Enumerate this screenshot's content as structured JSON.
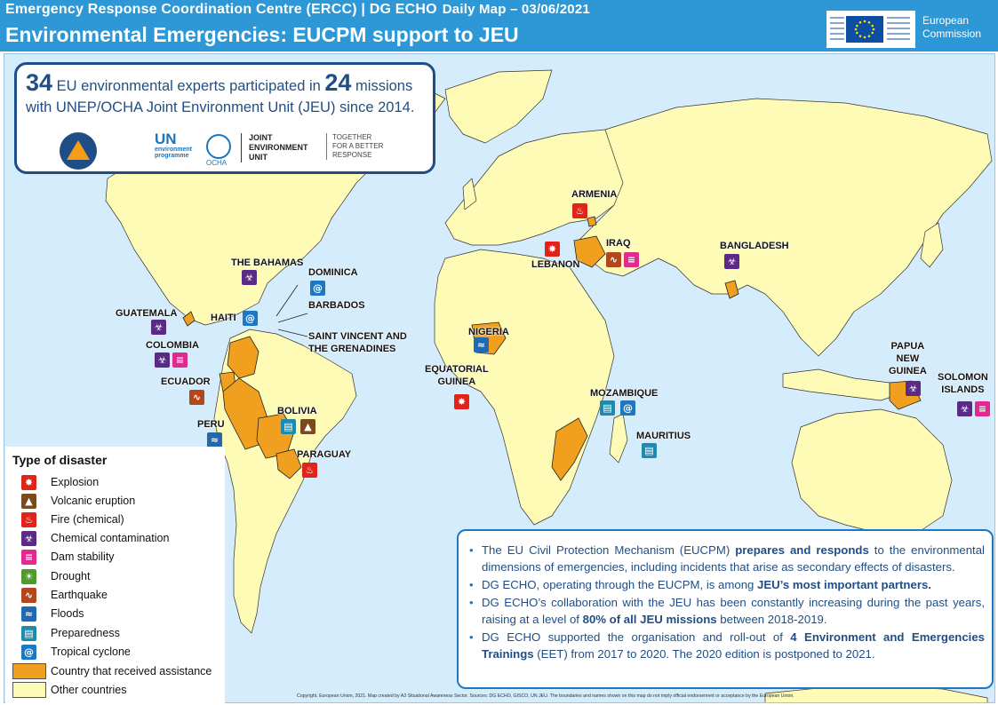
{
  "header": {
    "line1": "Emergency Response Coordination Centre (ERCC) | DG ECHO",
    "line1_sub": "Daily Map – 03/06/2021",
    "title": "Environmental Emergencies: EUCPM support to JEU",
    "ec_logo_text": [
      "European",
      "Commission"
    ]
  },
  "info": {
    "experts_count": "34",
    "text1": "EU environmental experts participated in",
    "missions_count": "24",
    "text2": "missions",
    "text3": "with UNEP/OCHA Joint Environment Unit (JEU) since 2014.",
    "logos": {
      "un_env": "UN",
      "un_env_sub": [
        "environment",
        "programme"
      ],
      "ocha": "OCHA",
      "jeu": [
        "JOINT",
        "ENVIRONMENT",
        "UNIT"
      ],
      "together": [
        "TOGETHER",
        "FOR A BETTER",
        "RESPONSE"
      ]
    }
  },
  "countries": [
    {
      "name": "ARMENIA",
      "icons": [
        "fire"
      ]
    },
    {
      "name": "LEBANON",
      "icons": [
        "explosion"
      ]
    },
    {
      "name": "IRAQ",
      "icons": [
        "earthquake",
        "dam"
      ]
    },
    {
      "name": "BANGLADESH",
      "icons": [
        "chemical"
      ]
    },
    {
      "name": "THE BAHAMAS",
      "icons": [
        "chemical"
      ]
    },
    {
      "name": "DOMINICA",
      "icons": [
        "cyclone"
      ]
    },
    {
      "name": "BARBADOS",
      "icons": []
    },
    {
      "name": "SAINT VINCENT AND THE GRENADINES",
      "icons": []
    },
    {
      "name": "HAITI",
      "icons": [
        "cyclone"
      ]
    },
    {
      "name": "GUATEMALA",
      "icons": [
        "chemical"
      ]
    },
    {
      "name": "COLOMBIA",
      "icons": [
        "chemical",
        "dam"
      ]
    },
    {
      "name": "ECUADOR",
      "icons": [
        "earthquake"
      ]
    },
    {
      "name": "PERU",
      "icons": [
        "flood"
      ]
    },
    {
      "name": "BOLIVIA",
      "icons": [
        "prep",
        "volcano"
      ]
    },
    {
      "name": "PARAGUAY",
      "icons": [
        "fire"
      ]
    },
    {
      "name": "NIGERIA",
      "icons": [
        "flood"
      ]
    },
    {
      "name": "EQUATORIAL GUINEA",
      "icons": [
        "explosion"
      ]
    },
    {
      "name": "MOZAMBIQUE",
      "icons": [
        "prep",
        "cyclone"
      ]
    },
    {
      "name": "MAURITIUS",
      "icons": [
        "prep"
      ]
    },
    {
      "name": "PAPUA NEW GUINEA",
      "icons": [
        "chemical"
      ]
    },
    {
      "name": "SOLOMON ISLANDS",
      "icons": [
        "chemical",
        "dam"
      ]
    }
  ],
  "labels": {
    "armenia": "ARMENIA",
    "lebanon": "LEBANON",
    "iraq": "IRAQ",
    "bangladesh": "BANGLADESH",
    "bahamas": "THE BAHAMAS",
    "dominica": "DOMINICA",
    "barbados": "BARBADOS",
    "svg1": "SAINT VINCENT AND",
    "svg2": "THE GRENADINES",
    "haiti": "HAITI",
    "guatemala": "GUATEMALA",
    "colombia": "COLOMBIA",
    "ecuador": "ECUADOR",
    "peru": "PERU",
    "bolivia": "BOLIVIA",
    "paraguay": "PARAGUAY",
    "nigeria": "NIGERIA",
    "eqg1": "EQUATORIAL",
    "eqg2": "GUINEA",
    "mozambique": "MOZAMBIQUE",
    "mauritius": "MAURITIUS",
    "png1": "PAPUA",
    "png2": "NEW",
    "png3": "GUINEA",
    "sol1": "SOLOMON",
    "sol2": "ISLANDS"
  },
  "legend": {
    "title": "Type of disaster",
    "items": [
      {
        "icon": "explosion",
        "label": "Explosion"
      },
      {
        "icon": "volcano",
        "label": "Volcanic eruption"
      },
      {
        "icon": "fire",
        "label": "Fire (chemical)"
      },
      {
        "icon": "chemical",
        "label": "Chemical contamination"
      },
      {
        "icon": "dam",
        "label": "Dam stability"
      },
      {
        "icon": "drought",
        "label": "Drought"
      },
      {
        "icon": "earthquake",
        "label": "Earthquake"
      },
      {
        "icon": "flood",
        "label": "Floods"
      },
      {
        "icon": "prep",
        "label": "Preparedness"
      },
      {
        "icon": "cyclone",
        "label": "Tropical cyclone"
      }
    ],
    "assisted_label": "Country that received assistance",
    "other_label": "Other countries",
    "colors": {
      "assisted": "#f0a01e",
      "other": "#fdfbb6"
    }
  },
  "bullets": [
    {
      "pre": "The EU Civil Protection Mechanism (EUCPM) ",
      "bold": "prepares and responds",
      "post": " to the environmental dimensions of emergencies, including incidents that arise as secondary effects of disasters."
    },
    {
      "pre": "DG ECHO, operating through the EUCPM, is among ",
      "bold": " JEU’s most important partners.",
      "post": ""
    },
    {
      "pre": "DG ECHO’s collaboration with the JEU has been constantly increasing during the past years, raising at a level of ",
      "bold": "80% of all JEU missions",
      "post": " between 2018-2019."
    },
    {
      "pre": "DG ECHO supported the organisation and roll-out of ",
      "bold": "4 Environment and Emergencies Trainings",
      "post": " (EET) from 2017 to 2020. The 2020 edition is postponed to 2021."
    }
  ],
  "copyright": "Copyright, European Union, 2021. Map created by A3 Situational Awareness Sector. Sources: DG ECHO, GISCO, UN JEU. The boundaries and names shown on this map do not imply official endorsement or acceptance by the European Union.",
  "colors": {
    "header": "#2e97d6",
    "ocean": "#d4ecfb",
    "land": "#fdfbb6",
    "assisted": "#f0a01e",
    "text_blue": "#1f4e86"
  }
}
